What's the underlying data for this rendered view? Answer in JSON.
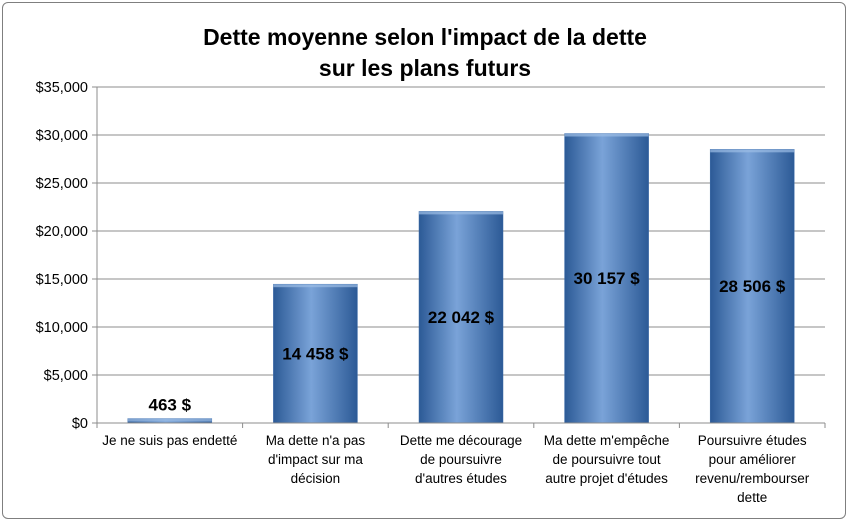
{
  "chart_data": {
    "type": "bar",
    "title": [
      "Dette moyenne selon l'impact de la dette",
      "sur les plans futurs"
    ],
    "categories": [
      [
        "Je ne suis pas endetté"
      ],
      [
        "Ma dette n'a pas",
        "d'impact sur ma",
        "décision"
      ],
      [
        "Dette me décourage",
        "de poursuivre",
        "d'autres études"
      ],
      [
        "Ma dette m'empêche",
        "de poursuivre tout",
        "autre projet d'études"
      ],
      [
        "Poursuivre études",
        "pour améliorer",
        "revenu/rembourser",
        "dette"
      ]
    ],
    "values": [
      463,
      14458,
      22042,
      30157,
      28506
    ],
    "data_labels": [
      "463 $",
      "14 458 $",
      "22 042 $",
      "30 157 $",
      "28 506 $"
    ],
    "ylim": [
      0,
      35000
    ],
    "y_ticks": [
      0,
      5000,
      10000,
      15000,
      20000,
      25000,
      30000,
      35000
    ],
    "y_tick_labels": [
      "$0",
      "$5,000",
      "$10,000",
      "$15,000",
      "$20,000",
      "$25,000",
      "$30,000",
      "$35,000"
    ],
    "grid": true,
    "bar_color": "#4f81bd",
    "bar_color_dark": "#2c5a96",
    "bar_color_light": "#7aa3d8"
  }
}
